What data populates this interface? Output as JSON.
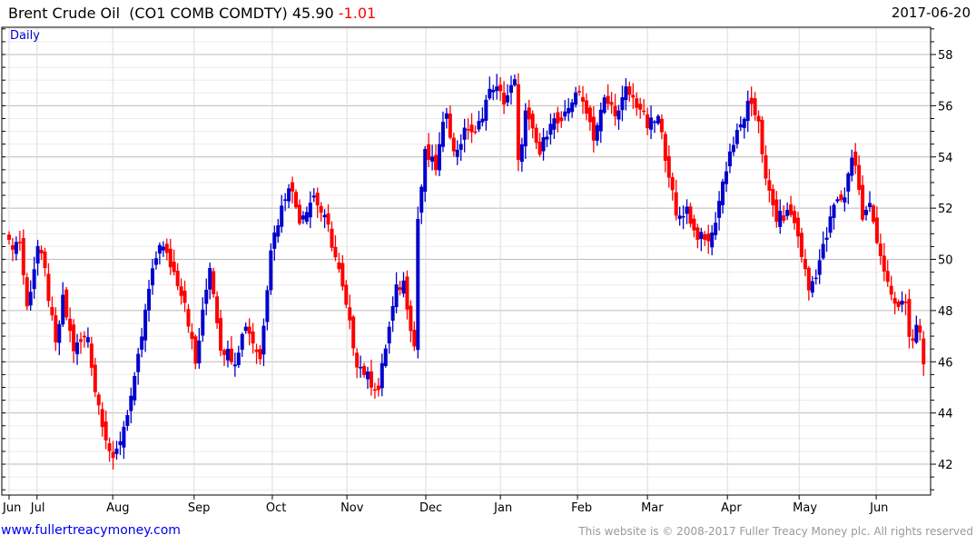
{
  "header": {
    "name": "Brent Crude Oil",
    "ticker": "(CO1 COMB COMDTY)",
    "last": "45.90",
    "change": "-1.01",
    "date": "2017-06-20",
    "period": "Daily"
  },
  "footer": {
    "site": "www.fullertreacymoney.com",
    "copyright": "This website is © 2008-2017 Fuller Treacy Money plc. All rights reserved"
  },
  "colors": {
    "up": "#0000cc",
    "down": "#ff0000",
    "accent_change": "#ff0000"
  },
  "chart_data": {
    "type": "candlestick",
    "title": "Brent Crude Oil (CO1 COMB COMDTY) 45.90 -1.01",
    "x_unit": "trading day index",
    "ylim": [
      41,
      59.5
    ],
    "yticks": [
      42,
      44,
      46,
      48,
      50,
      52,
      54,
      56,
      58
    ],
    "grid": true,
    "months": [
      {
        "label": "Jun",
        "day": 0
      },
      {
        "label": "Jul",
        "day": 7.8
      },
      {
        "label": "Aug",
        "day": 28.9
      },
      {
        "label": "Sep",
        "day": 51.6
      },
      {
        "label": "Oct",
        "day": 73.4
      },
      {
        "label": "Nov",
        "day": 94.2
      },
      {
        "label": "Dec",
        "day": 116.2
      },
      {
        "label": "Jan",
        "day": 137
      },
      {
        "label": "Feb",
        "day": 158.5
      },
      {
        "label": "Mar",
        "day": 178
      },
      {
        "label": "Apr",
        "day": 200.3
      },
      {
        "label": "May",
        "day": 220.3
      },
      {
        "label": "Jun",
        "day": 241.8
      }
    ],
    "close_path": [
      [
        0,
        50.55
      ],
      [
        3,
        50.7
      ],
      [
        5,
        48.1
      ],
      [
        8,
        50.5
      ],
      [
        10,
        49.5
      ],
      [
        13,
        46.6
      ],
      [
        15,
        48.4
      ],
      [
        18,
        46.5
      ],
      [
        22,
        47
      ],
      [
        24,
        44.9
      ],
      [
        27,
        43.1
      ],
      [
        29,
        42.0
      ],
      [
        32,
        43.5
      ],
      [
        35,
        45.2
      ],
      [
        39,
        48.8
      ],
      [
        42,
        50.7
      ],
      [
        46,
        49.5
      ],
      [
        49,
        48.4
      ],
      [
        52,
        45.9
      ],
      [
        56,
        49.8
      ],
      [
        59,
        46.6
      ],
      [
        63,
        46.1
      ],
      [
        66,
        47.5
      ],
      [
        70,
        46.1
      ],
      [
        73,
        50.5
      ],
      [
        76,
        52
      ],
      [
        78,
        53
      ],
      [
        81,
        51.6
      ],
      [
        85,
        52.5
      ],
      [
        89,
        51.2
      ],
      [
        92,
        49.5
      ],
      [
        95,
        47.4
      ],
      [
        97,
        46
      ],
      [
        101,
        45.2
      ],
      [
        103,
        44.9
      ],
      [
        105,
        46.6
      ],
      [
        108,
        48.8
      ],
      [
        110,
        49.1
      ],
      [
        113,
        46.6
      ],
      [
        114,
        51.6
      ],
      [
        116,
        54.1
      ],
      [
        119,
        53.6
      ],
      [
        122,
        55.9
      ],
      [
        124,
        54.1
      ],
      [
        128,
        55.2
      ],
      [
        130,
        54.8
      ],
      [
        133,
        56.2
      ],
      [
        135,
        56.8
      ],
      [
        138,
        56.2
      ],
      [
        141,
        56.9
      ],
      [
        142,
        53.7
      ],
      [
        144,
        55.7
      ],
      [
        148,
        54.1
      ],
      [
        151,
        55.5
      ],
      [
        154,
        55.2
      ],
      [
        158,
        56.6
      ],
      [
        161,
        55.9
      ],
      [
        163,
        54.8
      ],
      [
        166,
        56.2
      ],
      [
        170,
        55.7
      ],
      [
        172,
        56.6
      ],
      [
        176,
        55.9
      ],
      [
        178,
        55.2
      ],
      [
        181,
        55.5
      ],
      [
        184,
        53.4
      ],
      [
        186,
        51.6
      ],
      [
        189,
        52
      ],
      [
        191,
        51.1
      ],
      [
        194,
        50.7
      ],
      [
        196,
        50.9
      ],
      [
        199,
        53
      ],
      [
        201,
        54.2
      ],
      [
        204,
        55.2
      ],
      [
        206,
        56
      ],
      [
        209,
        55.5
      ],
      [
        211,
        53
      ],
      [
        214,
        51.6
      ],
      [
        218,
        51.8
      ],
      [
        220,
        50.9
      ],
      [
        223,
        48.8
      ],
      [
        225,
        49.5
      ],
      [
        228,
        50.9
      ],
      [
        230,
        52.1
      ],
      [
        233,
        52.5
      ],
      [
        235,
        54.1
      ],
      [
        236,
        53.7
      ],
      [
        238,
        51.6
      ],
      [
        240,
        52.1
      ],
      [
        243,
        50.2
      ],
      [
        246,
        48.4
      ],
      [
        248,
        48.1
      ],
      [
        250,
        48.4
      ],
      [
        251,
        46.9
      ],
      [
        253,
        47.2
      ],
      [
        254,
        46.91
      ],
      [
        255,
        45.9
      ]
    ],
    "last_candle": {
      "open": 46.91,
      "high": 47.2,
      "low": 45.45,
      "close": 45.9
    }
  }
}
